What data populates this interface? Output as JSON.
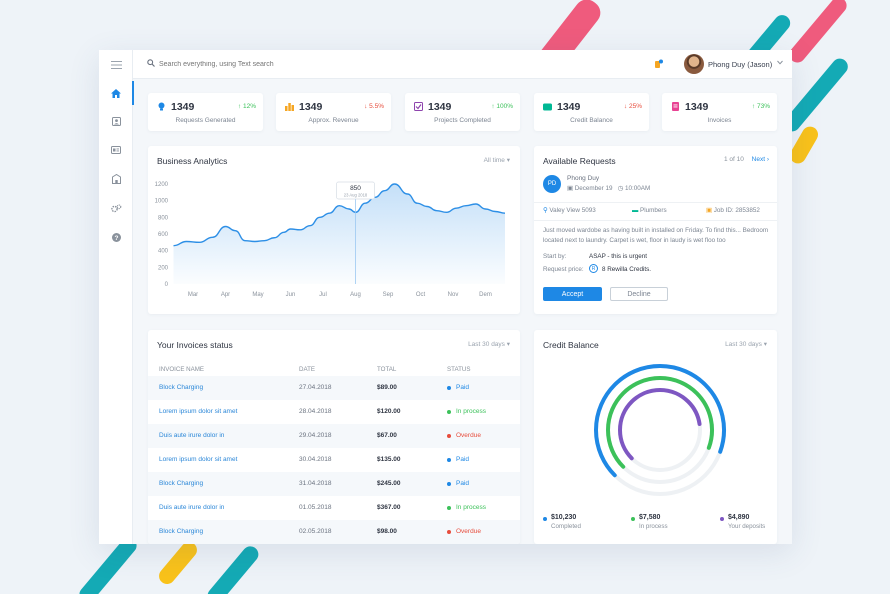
{
  "search": {
    "placeholder": "Search everything, using Text search"
  },
  "user": {
    "name": "Phong Duy (Jason)"
  },
  "stats": [
    {
      "value": "1349",
      "change": "12%",
      "dir": "up",
      "label": "Requests Generated",
      "icon_color": "#1e88e5"
    },
    {
      "value": "1349",
      "change": "5.5%",
      "dir": "down",
      "label": "Approx. Revenue",
      "icon_color": "#f5a623"
    },
    {
      "value": "1349",
      "change": "100%",
      "dir": "up",
      "label": "Projects Completed",
      "icon_color": "#8e44ad"
    },
    {
      "value": "1349",
      "change": "25%",
      "dir": "down",
      "label": "Credit Balance",
      "icon_color": "#00b894"
    },
    {
      "value": "1349",
      "change": "73%",
      "dir": "up",
      "label": "Invoices",
      "icon_color": "#e84393"
    }
  ],
  "analytics": {
    "title": "Business Analytics",
    "filter": "All time",
    "tooltip_value": "850",
    "tooltip_date": "23 Aug 2018"
  },
  "chart_data": {
    "type": "area",
    "categories": [
      "Mar",
      "Apr",
      "May",
      "Jun",
      "Jul",
      "Aug",
      "Sep",
      "Oct",
      "Nov",
      "Dem"
    ],
    "y_ticks": [
      "0",
      "200",
      "400",
      "600",
      "800",
      "1000",
      "1200"
    ],
    "ylim": [
      0,
      1200
    ],
    "points_x": [
      -0.6,
      -0.2,
      0.2,
      0.6,
      1.0,
      1.3,
      1.6,
      1.9,
      2.2,
      2.5,
      2.8,
      3.0,
      3.3,
      3.6,
      3.9,
      4.2,
      4.5,
      4.8,
      5.0,
      5.3,
      5.6,
      5.9,
      6.2,
      6.6,
      6.9,
      7.2,
      7.5,
      7.8,
      8.1,
      8.4,
      8.7,
      9.0,
      9.3,
      9.6
    ],
    "points_y": [
      460,
      510,
      500,
      560,
      690,
      640,
      520,
      510,
      520,
      555,
      620,
      660,
      650,
      700,
      800,
      850,
      940,
      900,
      860,
      970,
      1040,
      1120,
      1200,
      1080,
      970,
      930,
      880,
      860,
      910,
      940,
      960,
      900,
      870,
      850
    ],
    "color": "#2d8fe6",
    "annotation": {
      "x_index": 5,
      "label_x": "Aug"
    }
  },
  "requests": {
    "title": "Available Requests",
    "pager": "1 of 10",
    "next": "Next",
    "initials": "PD",
    "name": "Phong Duy",
    "date": "December 19",
    "time": "10:00AM",
    "location": "Valey View 5093",
    "category": "Plumbers",
    "job": "Job ID: 2853852",
    "description": "Just moved wardobe as having built in installed on Friday. To find this... Bedroom located next to laundry. Carpet is wet, floor in laudy is wet floo too",
    "start_label": "Start by:",
    "start_value": "ASAP - this is urgent",
    "price_label": "Request price:",
    "price_value": "8 Rewilla Credits.",
    "accept": "Accept",
    "decline": "Decline"
  },
  "invoices": {
    "title": "Your Invoices status",
    "filter": "Last 30 days",
    "headers": [
      "INVOICE NAME",
      "DATE",
      "TOTAL",
      "STATUS"
    ],
    "rows": [
      {
        "name": "Block Charging",
        "date": "27.04.2018",
        "total": "$89.00",
        "status": "Paid",
        "color": "#1e88e5"
      },
      {
        "name": "Lorem ipsum dolor sit amet",
        "date": "28.04.2018",
        "total": "$120.00",
        "status": "In process",
        "color": "#3cc15a"
      },
      {
        "name": "Duis aute irure dolor in",
        "date": "29.04.2018",
        "total": "$67.00",
        "status": "Overdue",
        "color": "#e74c3c"
      },
      {
        "name": "Lorem ipsum dolor sit amet",
        "date": "30.04.2018",
        "total": "$135.00",
        "status": "Paid",
        "color": "#1e88e5"
      },
      {
        "name": "Block Charging",
        "date": "31.04.2018",
        "total": "$245.00",
        "status": "Paid",
        "color": "#1e88e5"
      },
      {
        "name": "Duis aute irure dolor in",
        "date": "01.05.2018",
        "total": "$367.00",
        "status": "In process",
        "color": "#3cc15a"
      },
      {
        "name": "Block Charging",
        "date": "02.05.2018",
        "total": "$98.00",
        "status": "Overdue",
        "color": "#e74c3c"
      }
    ]
  },
  "credit": {
    "title": "Credit Balance",
    "filter": "Last 30 days",
    "legend": [
      {
        "value": "$10,230",
        "label": "Completed",
        "color": "#1e88e5",
        "fraction": 0.68
      },
      {
        "value": "$7,580",
        "label": "In process",
        "color": "#3cc15a",
        "fraction": 0.68
      },
      {
        "value": "$4,890",
        "label": "Your deposits",
        "color": "#7e57c2",
        "fraction": 0.6
      }
    ]
  }
}
